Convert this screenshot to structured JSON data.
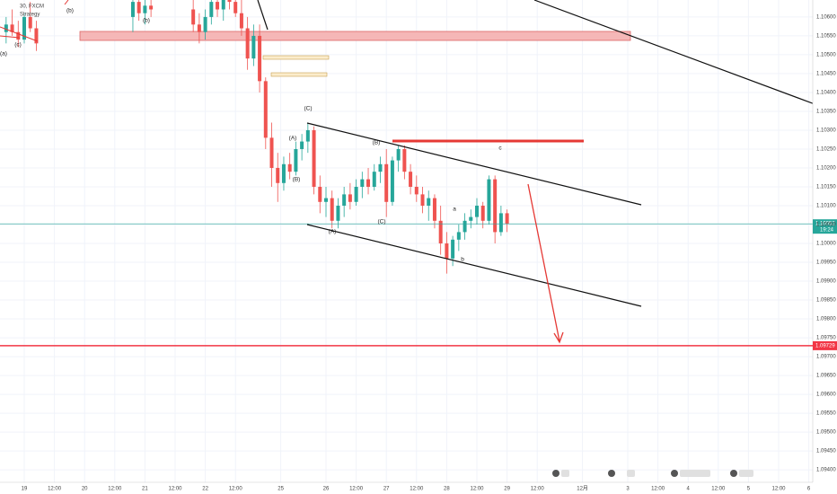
{
  "chart_data": {
    "type": "candlestick",
    "legend_lines": [
      "30, FXCM",
      "Strategy"
    ],
    "x": [
      -0.6,
      -0.4,
      -0.2,
      0.0,
      0.2,
      0.4,
      3.6,
      3.8,
      4.0,
      4.2,
      5.6,
      5.8,
      6.0,
      6.2,
      6.4,
      6.6,
      6.8,
      7.0,
      7.2,
      7.4,
      7.6,
      7.8,
      8.0,
      8.2,
      8.4,
      8.6,
      8.8,
      9.0,
      9.2,
      9.4,
      9.6,
      9.8,
      10.0,
      10.2,
      10.4,
      10.6,
      10.8,
      11.0,
      11.2,
      11.4,
      11.6,
      11.8,
      12.0,
      12.2,
      12.4,
      12.6,
      12.8,
      13.0,
      13.2,
      13.4,
      13.6,
      13.8,
      14.0,
      14.2,
      14.4,
      14.6,
      14.8,
      15.0,
      15.2,
      15.4,
      15.6,
      15.8,
      16.0
    ],
    "open": [
      1.1056,
      1.1058,
      1.1056,
      1.1054,
      1.106,
      1.1057,
      1.106,
      1.1064,
      1.1061,
      1.1063,
      1.1062,
      1.1058,
      1.1056,
      1.106,
      1.1064,
      1.1062,
      1.1065,
      1.1064,
      1.1061,
      1.1057,
      1.1049,
      1.1055,
      1.1043,
      1.1028,
      1.102,
      1.1016,
      1.1021,
      1.1019,
      1.1025,
      1.1027,
      1.103,
      1.1015,
      1.1011,
      1.1012,
      1.1006,
      1.101,
      1.1013,
      1.1011,
      1.1015,
      1.1017,
      1.1015,
      1.1019,
      1.1021,
      1.1011,
      1.1022,
      1.1025,
      1.1019,
      1.1015,
      1.1013,
      1.101,
      1.1012,
      1.1006,
      1.1,
      1.0996,
      1.1001,
      1.1003,
      1.1006,
      1.1007,
      1.101,
      1.1006,
      1.1017,
      1.1003,
      1.1008
    ],
    "high": [
      1.106,
      1.1062,
      1.1059,
      1.1061,
      1.1064,
      1.1059,
      1.1066,
      1.1067,
      1.1065,
      1.1067,
      1.1066,
      1.1061,
      1.1062,
      1.1066,
      1.1068,
      1.1066,
      1.1069,
      1.1068,
      1.1065,
      1.106,
      1.1058,
      1.1058,
      1.1044,
      1.1032,
      1.1024,
      1.1023,
      1.1024,
      1.1027,
      1.1029,
      1.1032,
      1.1031,
      1.1018,
      1.1015,
      1.1014,
      1.1012,
      1.1015,
      1.1016,
      1.1017,
      1.1019,
      1.102,
      1.1021,
      1.1023,
      1.1025,
      1.1023,
      1.1026,
      1.1026,
      1.1021,
      1.1018,
      1.1015,
      1.1014,
      1.1013,
      1.101,
      1.1003,
      1.1002,
      1.1005,
      1.1008,
      1.1009,
      1.1012,
      1.1011,
      1.1018,
      1.1018,
      1.101,
      1.1009
    ],
    "low": [
      1.1053,
      1.1055,
      1.1052,
      1.1053,
      1.1056,
      1.1051,
      1.1056,
      1.1059,
      1.1058,
      1.106,
      1.1056,
      1.1053,
      1.1054,
      1.1058,
      1.106,
      1.1059,
      1.1062,
      1.106,
      1.1055,
      1.1046,
      1.1047,
      1.104,
      1.1025,
      1.1015,
      1.1011,
      1.1014,
      1.1017,
      1.1018,
      1.1022,
      1.1024,
      1.1013,
      1.1008,
      1.1007,
      1.1004,
      1.1004,
      1.1007,
      1.1009,
      1.101,
      1.1012,
      1.1013,
      1.1014,
      1.1016,
      1.1007,
      1.101,
      1.1019,
      1.1017,
      1.1013,
      1.1011,
      1.1008,
      1.1006,
      1.1004,
      1.0997,
      1.0992,
      1.0994,
      1.0998,
      1.1001,
      1.1004,
      1.1005,
      1.1004,
      1.1005,
      1.1,
      1.1002,
      1.1003
    ],
    "close": [
      1.1058,
      1.1056,
      1.1054,
      1.106,
      1.1057,
      1.1053,
      1.1064,
      1.1061,
      1.1063,
      1.1062,
      1.1058,
      1.1056,
      1.106,
      1.1064,
      1.1062,
      1.1065,
      1.1064,
      1.1061,
      1.1057,
      1.1049,
      1.1055,
      1.1043,
      1.1028,
      1.102,
      1.1016,
      1.1021,
      1.1019,
      1.1025,
      1.1027,
      1.103,
      1.1015,
      1.1011,
      1.1012,
      1.1006,
      1.101,
      1.1013,
      1.1011,
      1.1015,
      1.1017,
      1.1015,
      1.1019,
      1.1021,
      1.1011,
      1.1022,
      1.1025,
      1.1019,
      1.1015,
      1.1013,
      1.101,
      1.1012,
      1.1006,
      1.1,
      1.0996,
      1.1001,
      1.1003,
      1.1006,
      1.1007,
      1.101,
      1.1006,
      1.1017,
      1.1003,
      1.1008,
      1.10052
    ],
    "up_color": "#26a69a",
    "down_color": "#ef5350",
    "countdown": "19:24",
    "hline": 1.09729,
    "hline_color": "#f23645",
    "annotations": [
      "(b)",
      "(b)",
      "(c)",
      "(a)",
      "(C)",
      "(A)",
      "(B)",
      "(B)",
      "(C)",
      "(A)",
      "a",
      "b",
      "c"
    ],
    "xlim": [
      -0.8,
      26.13
    ],
    "xticks": [
      {
        "value": 0,
        "label": "19"
      },
      {
        "value": 1,
        "label": "12:00"
      },
      {
        "value": 2,
        "label": "20"
      },
      {
        "value": 3,
        "label": "12:00"
      },
      {
        "value": 4,
        "label": "21"
      },
      {
        "value": 5,
        "label": "12:00"
      },
      {
        "value": 6,
        "label": "22"
      },
      {
        "value": 7,
        "label": "12:00"
      },
      {
        "value": 8.5,
        "label": "25"
      },
      {
        "value": 10,
        "label": "26"
      },
      {
        "value": 11,
        "label": "12:00"
      },
      {
        "value": 12,
        "label": "27"
      },
      {
        "value": 13,
        "label": "12:00"
      },
      {
        "value": 14,
        "label": "28"
      },
      {
        "value": 15,
        "label": "12:00"
      },
      {
        "value": 16,
        "label": "29"
      },
      {
        "value": 17,
        "label": "12:00"
      },
      {
        "value": 18.5,
        "label": "12月"
      },
      {
        "value": 20,
        "label": "3"
      },
      {
        "value": 21,
        "label": "12:00"
      },
      {
        "value": 22,
        "label": "4"
      },
      {
        "value": 23,
        "label": "12:00"
      },
      {
        "value": 24,
        "label": "5"
      },
      {
        "value": 25,
        "label": "12:00"
      },
      {
        "value": 26,
        "label": "6"
      }
    ],
    "ylim": [
      1.09367,
      1.10645
    ],
    "yticks": [
      {
        "value": 1.094,
        "label": "1.09400"
      },
      {
        "value": 1.0945,
        "label": "1.09450"
      },
      {
        "value": 1.095,
        "label": "1.09500"
      },
      {
        "value": 1.0955,
        "label": "1.09550"
      },
      {
        "value": 1.096,
        "label": "1.09600"
      },
      {
        "value": 1.0965,
        "label": "1.09650"
      },
      {
        "value": 1.097,
        "label": "1.09700"
      },
      {
        "value": 1.0975,
        "label": "1.09750"
      },
      {
        "value": 1.098,
        "label": "1.09800"
      },
      {
        "value": 1.0985,
        "label": "1.09850"
      },
      {
        "value": 1.099,
        "label": "1.09900"
      },
      {
        "value": 1.0995,
        "label": "1.09950"
      },
      {
        "value": 1.1,
        "label": "1.10000"
      },
      {
        "value": 1.1005,
        "label": "1.10050"
      },
      {
        "value": 1.101,
        "label": "1.10100"
      },
      {
        "value": 1.1015,
        "label": "1.10150"
      },
      {
        "value": 1.102,
        "label": "1.10200"
      },
      {
        "value": 1.1025,
        "label": "1.10250"
      },
      {
        "value": 1.103,
        "label": "1.10300"
      },
      {
        "value": 1.1035,
        "label": "1.10350"
      },
      {
        "value": 1.104,
        "label": "1.10400"
      },
      {
        "value": 1.1045,
        "label": "1.10450"
      },
      {
        "value": 1.105,
        "label": "1.10500"
      },
      {
        "value": 1.1055,
        "label": "1.10550"
      },
      {
        "value": 1.106,
        "label": "1.10600"
      }
    ],
    "grid": true
  }
}
